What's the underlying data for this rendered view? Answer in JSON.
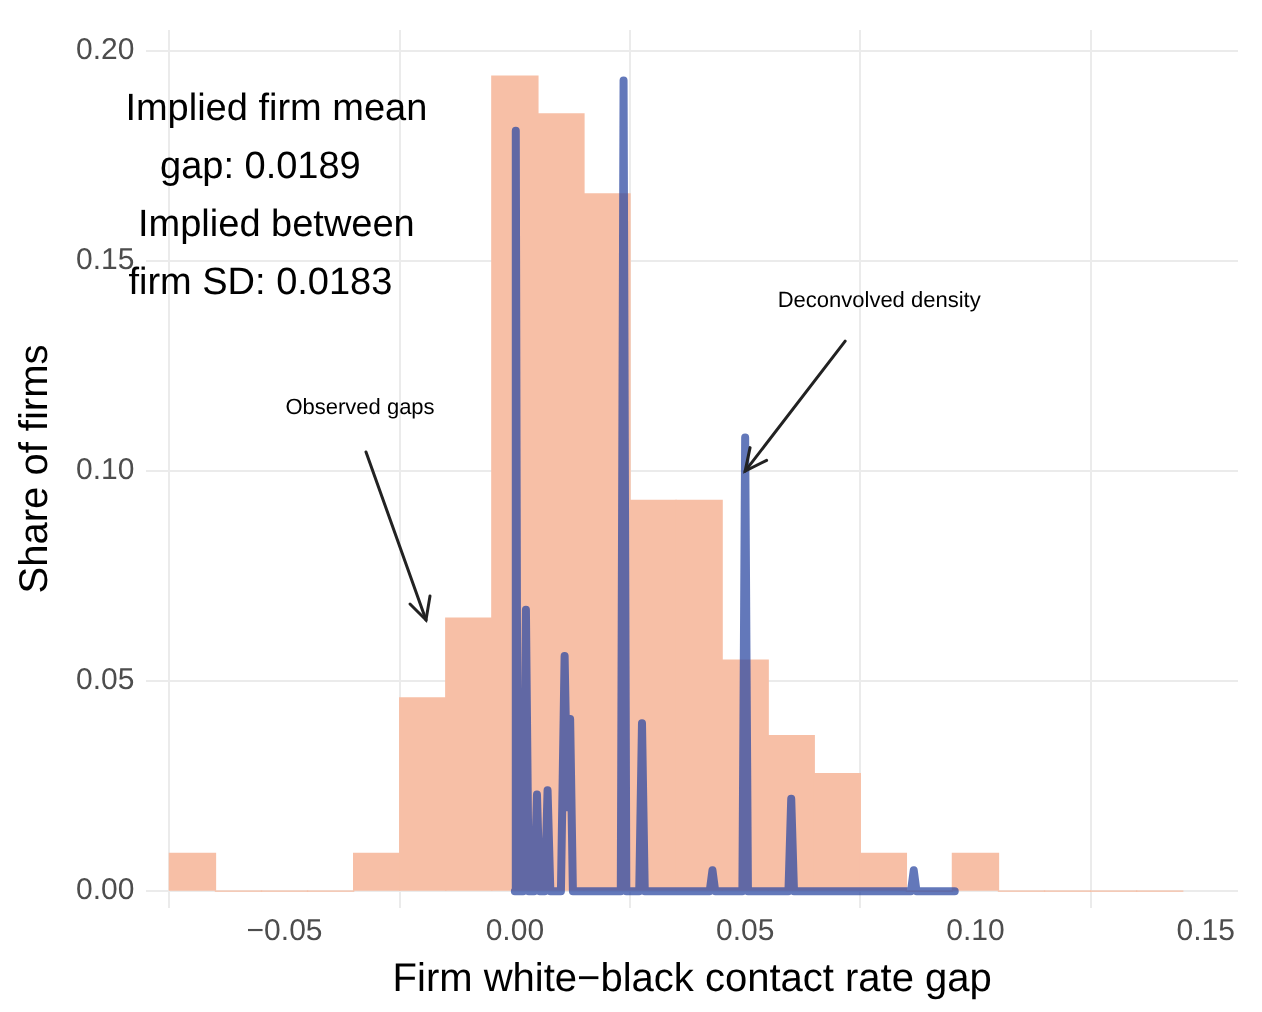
{
  "chart_data": {
    "type": "histogram",
    "xlabel": "Firm white−black contact rate gap",
    "ylabel": "Share of firms",
    "xlim": [
      -0.08,
      0.157
    ],
    "ylim": [
      -0.004,
      0.205
    ],
    "xticks": [
      {
        "value": -0.05,
        "label": "−0.05"
      },
      {
        "value": 0,
        "label": "0.00"
      },
      {
        "value": 0.05,
        "label": "0.05"
      },
      {
        "value": 0.1,
        "label": "0.10"
      },
      {
        "value": 0.15,
        "label": "0.15"
      }
    ],
    "yticks": [
      {
        "value": 0,
        "label": "0.00"
      },
      {
        "value": 0.05,
        "label": "0.05"
      },
      {
        "value": 0.1,
        "label": "0.10"
      },
      {
        "value": 0.15,
        "label": "0.15"
      },
      {
        "value": 0.2,
        "label": "0.20"
      }
    ],
    "grid": true,
    "series": [
      {
        "type": "histogram",
        "color": "#f7bfa6",
        "bins": [
          -0.075,
          -0.065,
          -0.055,
          -0.045,
          -0.035,
          -0.025,
          -0.015,
          -0.005,
          0.005,
          0.015,
          0.025,
          0.035,
          0.045,
          0.055,
          0.065,
          0.075,
          0.085,
          0.095,
          0.105,
          0.115,
          0.125,
          0.135,
          0.145
        ],
        "values": [
          0.009,
          0,
          0,
          0,
          0.009,
          0.046,
          0.065,
          0.194,
          0.185,
          0.166,
          0.093,
          0.093,
          0.055,
          0.037,
          0.028,
          0.009,
          0,
          0.009,
          0,
          0,
          0,
          0
        ]
      },
      {
        "type": "line",
        "color": "#2f4ba3",
        "x": [
          0,
          0.0002,
          0.0006,
          0.0011,
          0.0014,
          0.0018,
          0.0024,
          0.003,
          0.0042,
          0.0048,
          0.0054,
          0.0065,
          0.0071,
          0.0077,
          0.01,
          0.0108,
          0.0114,
          0.012,
          0.0126,
          0.023,
          0.0236,
          0.0242,
          0.027,
          0.0276,
          0.0282,
          0.0423,
          0.0429,
          0.0435,
          0.0494,
          0.05,
          0.0506,
          0.0594,
          0.06,
          0.0606,
          0.086,
          0.0866,
          0.0872,
          0.0955
        ],
        "values": [
          0,
          0.181,
          0,
          0,
          0.027,
          0,
          0.067,
          0,
          0,
          0.023,
          0,
          0,
          0.024,
          0,
          0,
          0.056,
          0.02,
          0.041,
          0,
          0,
          0.193,
          0,
          0,
          0.04,
          0,
          0,
          0.005,
          0,
          0,
          0.108,
          0,
          0,
          0.022,
          0,
          0,
          0.005,
          0,
          0
        ]
      }
    ],
    "annotations": [
      "Implied firm mean\ngap: 0.0189",
      "Implied between\nfirm SD: 0.0183",
      "Observed gaps",
      {
        "text": "Deconvolved density",
        "x": 0.05,
        "y": 0.1
      }
    ]
  }
}
